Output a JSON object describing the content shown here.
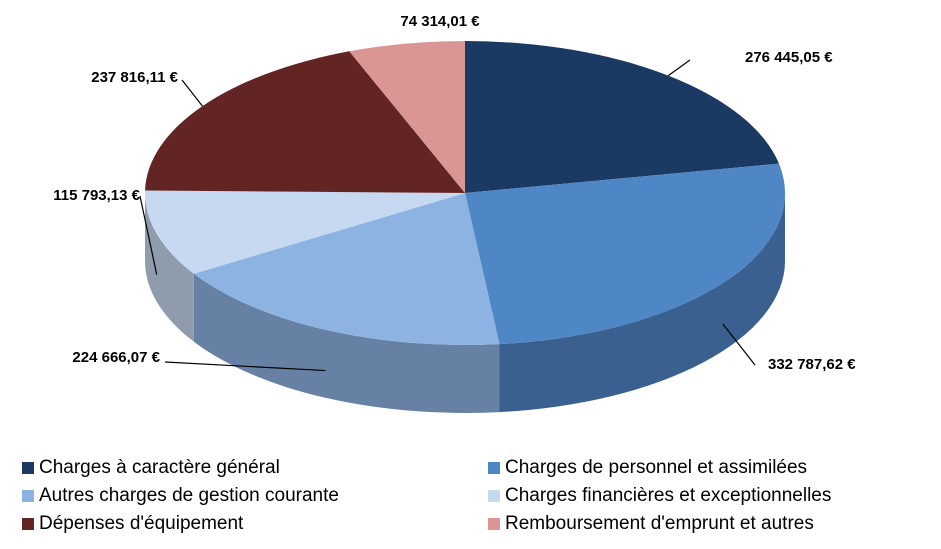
{
  "chart_data": {
    "type": "pie3d",
    "categories": [
      "Charges à caractère général",
      "Charges de personnel et assimilées",
      "Autres charges de gestion courante",
      "Charges financières et exceptionnelles",
      "Dépenses d'équipement",
      "Remboursement d'emprunt et autres"
    ],
    "values": [
      276445.05,
      332787.62,
      224666.07,
      115793.13,
      237816.11,
      74314.01
    ],
    "value_labels": [
      "276 445,05 €",
      "332 787,62 €",
      "224 666,07 €",
      "115 793,13 €",
      "237 816,11 €",
      "74 314,01 €"
    ],
    "colors": [
      "#1b3a63",
      "#4f86c6",
      "#8db3e2",
      "#c6d9f0",
      "#632523",
      "#d99694"
    ]
  }
}
